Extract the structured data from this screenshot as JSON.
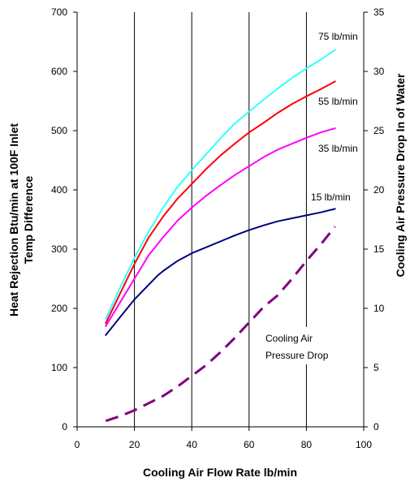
{
  "chart_data": {
    "type": "line",
    "xlabel": "Cooling Air Flow Rate lb/min",
    "ylabel_left": [
      "Heat Rejection Btu/min at 100F Inlet",
      "Temp Difference"
    ],
    "ylabel_right": "Cooling Air Pressure Drop In of Water",
    "xlim": [
      0,
      100
    ],
    "ylim_left": [
      0,
      700
    ],
    "ylim_right": [
      0,
      35
    ],
    "xticks": [
      "0",
      "20",
      "40",
      "60",
      "80",
      "100"
    ],
    "yticks_left": [
      "0",
      "100",
      "200",
      "300",
      "400",
      "500",
      "600",
      "700"
    ],
    "yticks_right": [
      "0",
      "5",
      "10",
      "15",
      "20",
      "25",
      "30",
      "35"
    ],
    "grid": "vertical",
    "series": [
      {
        "name": "75 lb/min",
        "axis": "left",
        "color": "#33ffff",
        "dash": false,
        "x": [
          10,
          15,
          20,
          25,
          30,
          35,
          40,
          45,
          50,
          55,
          60,
          65,
          70,
          75,
          80,
          85,
          90
        ],
        "y": [
          182,
          235,
          285,
          330,
          370,
          405,
          433,
          460,
          487,
          512,
          532,
          552,
          571,
          589,
          605,
          620,
          636
        ]
      },
      {
        "name": "55 lb/min",
        "axis": "left",
        "color": "#ff0000",
        "dash": false,
        "x": [
          10,
          15,
          20,
          25,
          30,
          35,
          40,
          45,
          50,
          55,
          60,
          65,
          70,
          75,
          80,
          85,
          90
        ],
        "y": [
          175,
          225,
          275,
          320,
          355,
          385,
          410,
          435,
          458,
          478,
          497,
          513,
          530,
          545,
          558,
          570,
          583
        ]
      },
      {
        "name": "35 lb/min",
        "axis": "left",
        "color": "#ff00ff",
        "dash": false,
        "x": [
          10,
          15,
          20,
          25,
          30,
          35,
          40,
          45,
          50,
          55,
          60,
          65,
          70,
          75,
          80,
          85,
          90
        ],
        "y": [
          170,
          210,
          250,
          290,
          320,
          348,
          370,
          390,
          408,
          425,
          440,
          455,
          468,
          478,
          488,
          497,
          504
        ]
      },
      {
        "name": "15 lb/min",
        "axis": "left",
        "color": "#000080",
        "dash": false,
        "x": [
          10,
          15,
          20,
          25,
          28,
          30,
          35,
          40,
          45,
          50,
          55,
          60,
          65,
          70,
          75,
          80,
          85,
          90
        ],
        "y": [
          155,
          185,
          215,
          240,
          255,
          263,
          280,
          293,
          303,
          313,
          323,
          332,
          340,
          347,
          352,
          357,
          362,
          368
        ]
      },
      {
        "name": "Cooling Air Pressure Drop",
        "axis": "right",
        "color": "#800080",
        "dash": true,
        "x": [
          10,
          15,
          20,
          25,
          30,
          35,
          40,
          45,
          50,
          55,
          60,
          65,
          70,
          75,
          80,
          85,
          90
        ],
        "y": [
          0.5,
          0.9,
          1.4,
          2.0,
          2.6,
          3.4,
          4.3,
          5.2,
          6.3,
          7.5,
          8.8,
          10.1,
          11.1,
          12.5,
          14.0,
          15.4,
          16.9
        ]
      }
    ],
    "series_labels": [
      "75 lb/min",
      "55 lb/min",
      "35 lb/min",
      "15 lb/min"
    ],
    "annotation": [
      "Cooling Air",
      "Pressure Drop"
    ]
  }
}
